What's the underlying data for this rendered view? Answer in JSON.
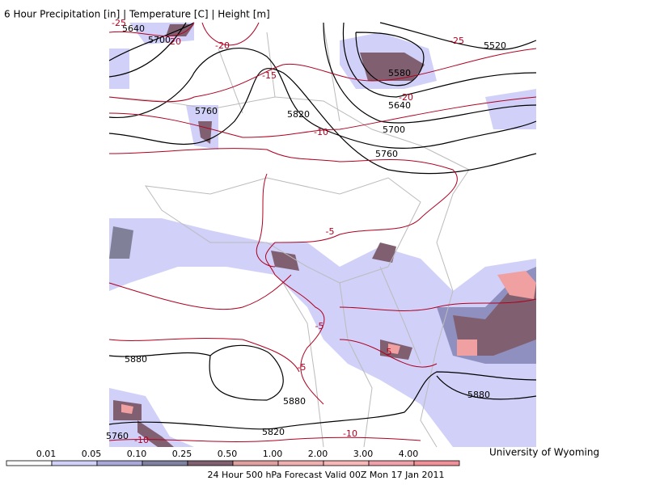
{
  "header": {
    "title": "6 Hour Precipitation [in] | Temperature [C] | Height [m]"
  },
  "map": {
    "contour_labels": [
      "5640",
      "-25",
      "5700",
      "-20",
      "-20",
      "-15",
      "5760",
      "5820",
      "-10",
      "5580",
      "-20",
      "5640",
      "5700",
      "5760",
      "-25",
      "5520",
      "-5",
      "-5",
      "-5",
      "5",
      "5880",
      "5880",
      "5880",
      "5820",
      "5760",
      "-10",
      "-10"
    ]
  },
  "legend": {
    "labels": [
      "0.01",
      "0.05",
      "0.10",
      "0.25",
      "0.50",
      "1.00",
      "2.00",
      "3.00",
      "4.00"
    ]
  },
  "footer": {
    "caption": "24 Hour 500 hPa Forecast Valid 00Z Mon 17 Jan 2011",
    "credit": "University of Wyoming"
  }
}
